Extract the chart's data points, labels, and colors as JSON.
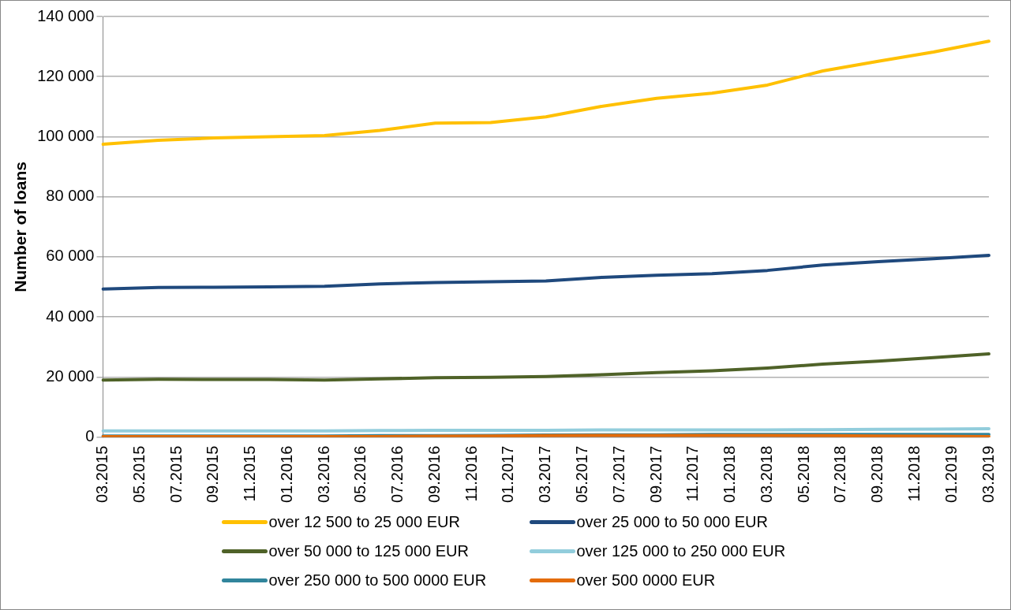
{
  "chart_data": {
    "type": "line",
    "ylabel": "Number of loans",
    "categories": [
      "03.2015",
      null,
      "05.2015",
      null,
      "07.2015",
      null,
      "09.2015",
      null,
      "11.2015",
      null,
      "01.2016",
      null,
      "03.2016",
      null,
      "05.2016",
      null,
      "07.2016",
      null,
      "09.2016",
      null,
      "11.2016",
      null,
      "01.2017",
      null,
      "03.2017",
      null,
      "05.2017",
      null,
      "07.2017",
      null,
      "09.2017",
      null,
      "11.2017",
      null,
      "01.2018",
      null,
      "03.2018",
      null,
      "05.2018",
      null,
      "07.2018",
      null,
      "09.2018",
      null,
      "11.2018",
      null,
      "01.2019",
      null,
      "03.2019"
    ],
    "series": [
      {
        "name": "over 12 500 to 25 000 EUR",
        "color": "#ffc000",
        "values": [
          97500,
          null,
          null,
          98800,
          null,
          null,
          99600,
          null,
          null,
          100000,
          null,
          null,
          100400,
          null,
          null,
          102100,
          null,
          null,
          104500,
          null,
          null,
          104700,
          null,
          null,
          106600,
          null,
          null,
          110100,
          null,
          null,
          112800,
          null,
          null,
          114500,
          null,
          null,
          117200,
          null,
          null,
          121900,
          null,
          null,
          125100,
          null,
          null,
          128200,
          null,
          null,
          131800
        ]
      },
      {
        "name": "over 25 000 to 50 000 EUR",
        "color": "#1f497d",
        "values": [
          49300,
          null,
          null,
          49800,
          null,
          null,
          49900,
          null,
          null,
          50000,
          null,
          null,
          50200,
          null,
          null,
          51000,
          null,
          null,
          51500,
          null,
          null,
          51700,
          null,
          null,
          52000,
          null,
          null,
          53200,
          null,
          null,
          53900,
          null,
          null,
          54400,
          null,
          null,
          55500,
          null,
          null,
          57300,
          null,
          null,
          58400,
          null,
          null,
          59400,
          null,
          null,
          60500
        ]
      },
      {
        "name": "over 50 000 to 125 000 EUR",
        "color": "#4f6228",
        "values": [
          19000,
          null,
          null,
          19300,
          null,
          null,
          19200,
          null,
          null,
          19200,
          null,
          null,
          19000,
          null,
          null,
          19400,
          null,
          null,
          19800,
          null,
          null,
          19900,
          null,
          null,
          20200,
          null,
          null,
          20800,
          null,
          null,
          21500,
          null,
          null,
          22100,
          null,
          null,
          23000,
          null,
          null,
          24300,
          null,
          null,
          25300,
          null,
          null,
          26500,
          null,
          null,
          27700
        ]
      },
      {
        "name": "over 125 000 to 250 000 EUR",
        "color": "#92cddc",
        "values": [
          2100,
          null,
          null,
          2100,
          null,
          null,
          2100,
          null,
          null,
          2100,
          null,
          null,
          2100,
          null,
          null,
          2200,
          null,
          null,
          2300,
          null,
          null,
          2300,
          null,
          null,
          2300,
          null,
          null,
          2400,
          null,
          null,
          2400,
          null,
          null,
          2400,
          null,
          null,
          2400,
          null,
          null,
          2500,
          null,
          null,
          2600,
          null,
          null,
          2700,
          null,
          null,
          2800
        ]
      },
      {
        "name": "over 250 000 to 500 0000 EUR",
        "color": "#31859c",
        "values": [
          400,
          null,
          null,
          400,
          null,
          null,
          400,
          null,
          null,
          400,
          null,
          null,
          400,
          null,
          null,
          500,
          null,
          null,
          500,
          null,
          null,
          600,
          null,
          null,
          700,
          null,
          null,
          800,
          null,
          null,
          800,
          null,
          null,
          900,
          null,
          null,
          900,
          null,
          null,
          900,
          null,
          null,
          900,
          null,
          null,
          900,
          null,
          null,
          900
        ]
      },
      {
        "name": "over 500 0000 EUR",
        "color": "#e46c0a",
        "values": [
          200,
          null,
          null,
          200,
          null,
          null,
          200,
          null,
          null,
          200,
          null,
          null,
          200,
          null,
          null,
          200,
          null,
          null,
          300,
          null,
          null,
          400,
          null,
          null,
          500,
          null,
          null,
          600,
          null,
          null,
          600,
          null,
          null,
          600,
          null,
          null,
          600,
          null,
          null,
          500,
          null,
          null,
          400,
          null,
          null,
          300,
          null,
          null,
          200
        ]
      }
    ],
    "ylim": [
      0,
      140000
    ],
    "yticks": [
      {
        "value": 0,
        "label": "0"
      },
      {
        "value": 20000,
        "label": "20 000"
      },
      {
        "value": 40000,
        "label": "40 000"
      },
      {
        "value": 60000,
        "label": "60 000"
      },
      {
        "value": 80000,
        "label": "80 000"
      },
      {
        "value": 100000,
        "label": "100 000"
      },
      {
        "value": 120000,
        "label": "120 000"
      },
      {
        "value": 140000,
        "label": "140 000"
      }
    ],
    "grid": "y",
    "legend": "bottom",
    "marker": "none",
    "line_style": "solid"
  }
}
